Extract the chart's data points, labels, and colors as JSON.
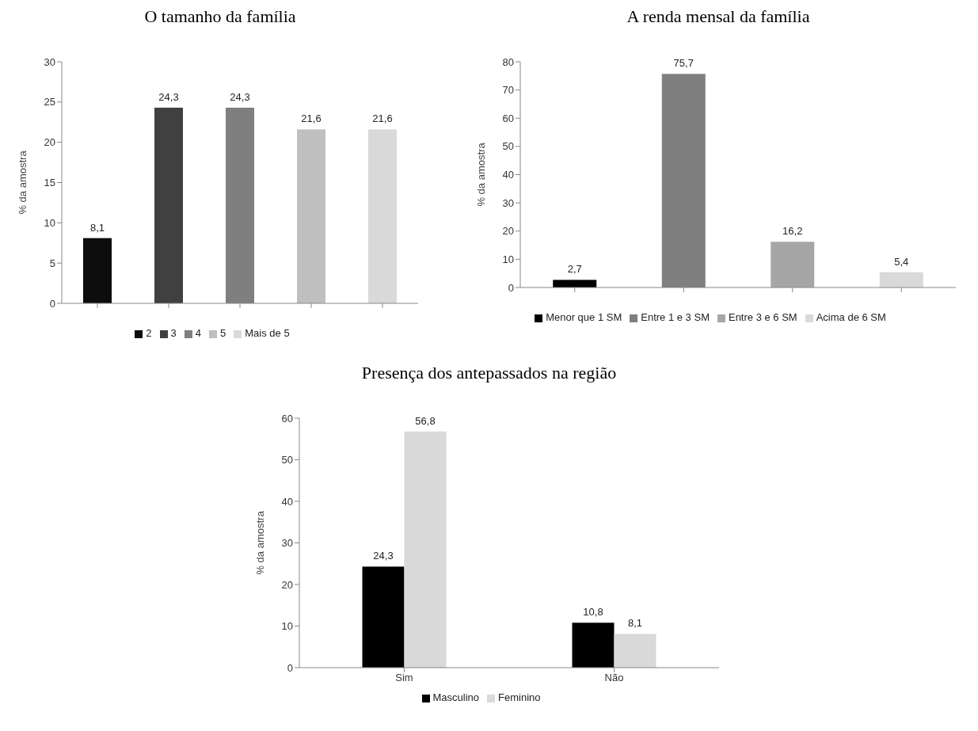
{
  "chart_data": [
    {
      "type": "bar",
      "title": "O tamanho da família",
      "ylabel": "% da amostra",
      "categories": [
        null,
        null,
        null,
        null,
        null
      ],
      "stacked": true,
      "ylim": [
        0,
        30
      ],
      "yticks": [
        0,
        5,
        10,
        15,
        20,
        25,
        30
      ],
      "legend": "bottom",
      "series": [
        {
          "name": "2",
          "color": "#0d0d0d",
          "values": [
            8.1,
            null,
            null,
            null,
            null
          ],
          "value_labels": [
            "8,1",
            null,
            null,
            null,
            null
          ]
        },
        {
          "name": "3",
          "color": "#404040",
          "values": [
            null,
            24.3,
            null,
            null,
            null
          ],
          "value_labels": [
            null,
            "24,3",
            null,
            null,
            null
          ]
        },
        {
          "name": "4",
          "color": "#7f7f7f",
          "values": [
            null,
            null,
            24.3,
            null,
            null
          ],
          "value_labels": [
            null,
            null,
            "24,3",
            null,
            null
          ]
        },
        {
          "name": "5",
          "color": "#bfbfbf",
          "values": [
            null,
            null,
            null,
            21.6,
            null
          ],
          "value_labels": [
            null,
            null,
            null,
            "21,6",
            null
          ]
        },
        {
          "name": "Mais de 5",
          "color": "#d9d9d9",
          "values": [
            null,
            null,
            null,
            null,
            21.6
          ],
          "value_labels": [
            null,
            null,
            null,
            null,
            "21,6"
          ]
        }
      ]
    },
    {
      "type": "bar",
      "title": "A renda mensal da família",
      "ylabel": "% da amostra",
      "categories": [
        null,
        null,
        null,
        null
      ],
      "stacked": true,
      "ylim": [
        0,
        80
      ],
      "yticks": [
        0,
        10,
        20,
        30,
        40,
        50,
        60,
        70,
        80
      ],
      "legend": "bottom",
      "series": [
        {
          "name": "Menor que 1 SM",
          "color": "#000000",
          "values": [
            2.7,
            null,
            null,
            null
          ],
          "value_labels": [
            "2,7",
            null,
            null,
            null
          ]
        },
        {
          "name": "Entre 1 e 3 SM",
          "color": "#7f7f7f",
          "values": [
            null,
            75.7,
            null,
            null
          ],
          "value_labels": [
            null,
            "75,7",
            null,
            null
          ]
        },
        {
          "name": "Entre 3 e 6 SM",
          "color": "#a6a6a6",
          "values": [
            null,
            null,
            16.2,
            null
          ],
          "value_labels": [
            null,
            null,
            "16,2",
            null
          ]
        },
        {
          "name": "Acima de 6 SM",
          "color": "#d9d9d9",
          "values": [
            null,
            null,
            null,
            5.4
          ],
          "value_labels": [
            null,
            null,
            null,
            "5,4"
          ]
        }
      ]
    },
    {
      "type": "bar",
      "title": "Presença dos antepassados na região",
      "ylabel": "% da amostra",
      "categories": [
        "Sim",
        "Não"
      ],
      "ylim": [
        0,
        60
      ],
      "yticks": [
        0,
        10,
        20,
        30,
        40,
        50,
        60
      ],
      "legend": "bottom",
      "series": [
        {
          "name": "Masculino",
          "color": "#000000",
          "values": [
            24.3,
            10.8
          ],
          "value_labels": [
            "24,3",
            "10,8"
          ]
        },
        {
          "name": "Feminino",
          "color": "#d9d9d9",
          "values": [
            56.8,
            8.1
          ],
          "value_labels": [
            "56,8",
            "8,1"
          ]
        }
      ]
    }
  ]
}
